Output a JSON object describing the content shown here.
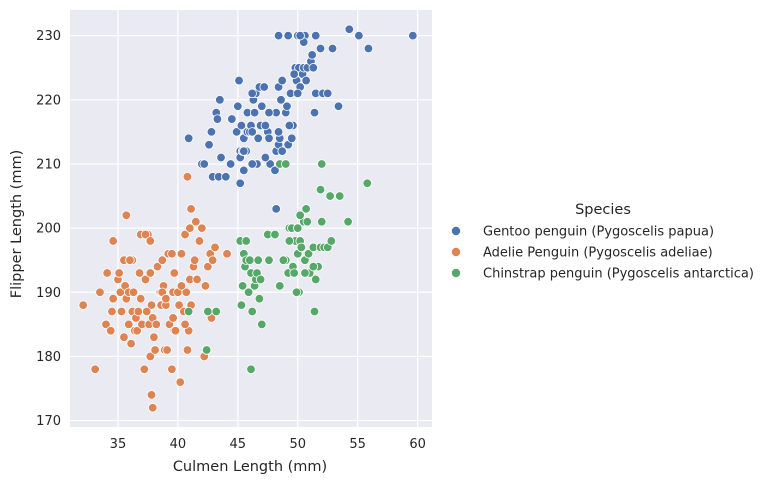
{
  "chart_data": {
    "type": "scatter",
    "xlabel": "Culmen Length (mm)",
    "ylabel": "Flipper Length (mm)",
    "xlim": [
      31,
      61.2
    ],
    "ylim": [
      169,
      234
    ],
    "x_ticks": [
      35,
      40,
      45,
      50,
      55,
      60
    ],
    "y_ticks": [
      170,
      180,
      190,
      200,
      210,
      220,
      230
    ],
    "grid": true,
    "legend": {
      "title": "Species",
      "placement": "right"
    },
    "series": [
      {
        "name": "Gentoo penguin (Pygoscelis papua)",
        "color": "#4c72b0",
        "points": [
          [
            40.9,
            214
          ],
          [
            42.0,
            210
          ],
          [
            42.2,
            210
          ],
          [
            42.6,
            213
          ],
          [
            42.8,
            215
          ],
          [
            43.2,
            218
          ],
          [
            43.3,
            217
          ],
          [
            43.5,
            220
          ],
          [
            42.9,
            208
          ],
          [
            43.4,
            208
          ],
          [
            43.6,
            211
          ],
          [
            44.0,
            208
          ],
          [
            44.4,
            210
          ],
          [
            44.5,
            217
          ],
          [
            44.9,
            215
          ],
          [
            45.2,
            212
          ],
          [
            45.0,
            219
          ],
          [
            45.1,
            223
          ],
          [
            45.2,
            211
          ],
          [
            45.3,
            216
          ],
          [
            45.2,
            207
          ],
          [
            45.4,
            212
          ],
          [
            45.5,
            209
          ],
          [
            45.5,
            214
          ],
          [
            45.7,
            212
          ],
          [
            45.8,
            215
          ],
          [
            46.0,
            215
          ],
          [
            46.1,
            216
          ],
          [
            46.2,
            215
          ],
          [
            46.3,
            220
          ],
          [
            45.8,
            218
          ],
          [
            46.4,
            218
          ],
          [
            46.5,
            221
          ],
          [
            46.2,
            221
          ],
          [
            46.8,
            222
          ],
          [
            47.0,
            219
          ],
          [
            47.2,
            222
          ],
          [
            47.5,
            215
          ],
          [
            46.6,
            210
          ],
          [
            46.9,
            216
          ],
          [
            47.3,
            216
          ],
          [
            47.6,
            214
          ],
          [
            47.7,
            210
          ],
          [
            48.1,
            209
          ],
          [
            48.2,
            212
          ],
          [
            48.4,
            213
          ],
          [
            48.5,
            214
          ],
          [
            48.7,
            212
          ],
          [
            48.2,
            218
          ],
          [
            48.4,
            215
          ],
          [
            48.6,
            220
          ],
          [
            48.4,
            222
          ],
          [
            48.7,
            223
          ],
          [
            49.0,
            218
          ],
          [
            49.1,
            219
          ],
          [
            49.2,
            213
          ],
          [
            49.4,
            221
          ],
          [
            49.5,
            214
          ],
          [
            49.6,
            216
          ],
          [
            49.8,
            225
          ],
          [
            49.9,
            223
          ],
          [
            50.1,
            225
          ],
          [
            50.2,
            222
          ],
          [
            50.4,
            224
          ],
          [
            50.5,
            225
          ],
          [
            50.6,
            230
          ],
          [
            50.8,
            225
          ],
          [
            51.1,
            226
          ],
          [
            51.3,
            225
          ],
          [
            51.5,
            221
          ],
          [
            49.3,
            216
          ],
          [
            50.0,
            221
          ],
          [
            49.7,
            224
          ],
          [
            50.5,
            229
          ],
          [
            50.7,
            223
          ],
          [
            51.4,
            218
          ],
          [
            51.2,
            227
          ],
          [
            52.1,
            221
          ],
          [
            52.5,
            221
          ],
          [
            53.4,
            219
          ],
          [
            48.4,
            230
          ],
          [
            49.2,
            230
          ],
          [
            50.0,
            230
          ],
          [
            50.2,
            230
          ],
          [
            51.5,
            230
          ],
          [
            51.9,
            228
          ],
          [
            52.9,
            228
          ],
          [
            54.3,
            231
          ],
          [
            55.1,
            230
          ],
          [
            55.9,
            228
          ],
          [
            59.6,
            230
          ],
          [
            48.2,
            203
          ],
          [
            48.5,
            210
          ],
          [
            47.3,
            211
          ],
          [
            46.7,
            214
          ],
          [
            45.5,
            212
          ],
          [
            47.6,
            218
          ],
          [
            46.2,
            210
          ]
        ]
      },
      {
        "name": "Adelie Penguin (Pygoscelis adeliae)",
        "color": "#dd8452",
        "points": [
          [
            32.1,
            188
          ],
          [
            33.1,
            178
          ],
          [
            33.5,
            190
          ],
          [
            34.0,
            185
          ],
          [
            34.1,
            193
          ],
          [
            34.4,
            184
          ],
          [
            34.5,
            187
          ],
          [
            34.6,
            189
          ],
          [
            34.6,
            198
          ],
          [
            35.0,
            192
          ],
          [
            35.1,
            193
          ],
          [
            35.2,
            190
          ],
          [
            35.3,
            187
          ],
          [
            35.5,
            195
          ],
          [
            35.6,
            191
          ],
          [
            35.7,
            189
          ],
          [
            35.7,
            202
          ],
          [
            35.9,
            185
          ],
          [
            35.9,
            190
          ],
          [
            36.0,
            195
          ],
          [
            36.2,
            187
          ],
          [
            36.2,
            195
          ],
          [
            36.3,
            190
          ],
          [
            36.4,
            184
          ],
          [
            36.5,
            186
          ],
          [
            36.6,
            184
          ],
          [
            36.7,
            187
          ],
          [
            36.8,
            193
          ],
          [
            36.9,
            189
          ],
          [
            37.0,
            185
          ],
          [
            37.2,
            178
          ],
          [
            37.3,
            192
          ],
          [
            37.5,
            199
          ],
          [
            37.6,
            185
          ],
          [
            37.7,
            193
          ],
          [
            37.8,
            188
          ],
          [
            37.9,
            186
          ],
          [
            37.7,
            180
          ],
          [
            37.8,
            174
          ],
          [
            37.9,
            172
          ],
          [
            38.1,
            181
          ],
          [
            38.2,
            185
          ],
          [
            38.3,
            194
          ],
          [
            38.5,
            190
          ],
          [
            38.6,
            190
          ],
          [
            38.6,
            188
          ],
          [
            38.7,
            195
          ],
          [
            38.8,
            191
          ],
          [
            38.9,
            181
          ],
          [
            39.0,
            188
          ],
          [
            39.1,
            181
          ],
          [
            39.2,
            196
          ],
          [
            39.3,
            185
          ],
          [
            39.5,
            178
          ],
          [
            39.6,
            186
          ],
          [
            39.6,
            190
          ],
          [
            39.7,
            184
          ],
          [
            39.8,
            184
          ],
          [
            40.0,
            190
          ],
          [
            40.1,
            188
          ],
          [
            40.2,
            176
          ],
          [
            40.3,
            196
          ],
          [
            40.5,
            187
          ],
          [
            40.6,
            199
          ],
          [
            40.7,
            190
          ],
          [
            40.8,
            181
          ],
          [
            40.9,
            184
          ],
          [
            41.0,
            192
          ],
          [
            41.1,
            188
          ],
          [
            41.3,
            194
          ],
          [
            41.4,
            195
          ],
          [
            41.5,
            201
          ],
          [
            41.6,
            192
          ],
          [
            41.8,
            198
          ],
          [
            42.0,
            200
          ],
          [
            42.2,
            180
          ],
          [
            42.3,
            191
          ],
          [
            42.5,
            194
          ],
          [
            42.7,
            196
          ],
          [
            42.8,
            186
          ],
          [
            43.1,
            197
          ],
          [
            40.8,
            208
          ],
          [
            41.1,
            203
          ],
          [
            41.0,
            200
          ],
          [
            36.0,
            195
          ],
          [
            36.9,
            199
          ],
          [
            37.3,
            199
          ],
          [
            37.7,
            198
          ],
          [
            38.7,
            190
          ],
          [
            39.0,
            189
          ],
          [
            39.5,
            196
          ],
          [
            40.6,
            185
          ],
          [
            35.5,
            183
          ],
          [
            37.4,
            187
          ],
          [
            36.1,
            182
          ],
          [
            38.0,
            183
          ],
          [
            39.7,
            193
          ],
          [
            40.3,
            191
          ],
          [
            44.1,
            196
          ],
          [
            42.9,
            195
          ]
        ]
      },
      {
        "name": "Chinstrap penguin (Pygoscelis antarctica)",
        "color": "#55a868",
        "points": [
          [
            40.9,
            187
          ],
          [
            42.4,
            181
          ],
          [
            42.5,
            187
          ],
          [
            43.2,
            187
          ],
          [
            45.2,
            198
          ],
          [
            45.4,
            191
          ],
          [
            45.5,
            196
          ],
          [
            45.6,
            194
          ],
          [
            45.7,
            195
          ],
          [
            45.9,
            190
          ],
          [
            46.0,
            195
          ],
          [
            46.1,
            193
          ],
          [
            46.2,
            187
          ],
          [
            46.4,
            191
          ],
          [
            46.5,
            192
          ],
          [
            46.6,
            193
          ],
          [
            46.7,
            195
          ],
          [
            46.8,
            189
          ],
          [
            46.9,
            192
          ],
          [
            47.0,
            185
          ],
          [
            45.3,
            188
          ],
          [
            47.5,
            199
          ],
          [
            47.6,
            195
          ],
          [
            48.1,
            199
          ],
          [
            48.5,
            191
          ],
          [
            49.0,
            195
          ],
          [
            49.2,
            193
          ],
          [
            49.3,
            200
          ],
          [
            49.5,
            200
          ],
          [
            49.6,
            194
          ],
          [
            49.7,
            193
          ],
          [
            49.8,
            198
          ],
          [
            50.0,
            196
          ],
          [
            50.1,
            190
          ],
          [
            50.2,
            198
          ],
          [
            50.3,
            197
          ],
          [
            50.5,
            201
          ],
          [
            50.6,
            195
          ],
          [
            50.7,
            203
          ],
          [
            50.8,
            201
          ],
          [
            50.9,
            196
          ],
          [
            51.0,
            193
          ],
          [
            51.3,
            197
          ],
          [
            51.4,
            187
          ],
          [
            51.5,
            192
          ],
          [
            51.7,
            194
          ],
          [
            51.9,
            197
          ],
          [
            52.0,
            201
          ],
          [
            52.2,
            197
          ],
          [
            52.5,
            197
          ],
          [
            52.7,
            205
          ],
          [
            53.5,
            205
          ],
          [
            54.2,
            201
          ],
          [
            55.8,
            207
          ],
          [
            51.3,
            194
          ],
          [
            52.8,
            198
          ],
          [
            51.9,
            206
          ],
          [
            52.0,
            210
          ],
          [
            50.0,
            200
          ],
          [
            48.5,
            210
          ],
          [
            46.1,
            178
          ],
          [
            48.8,
            195
          ],
          [
            50.6,
            193
          ],
          [
            49.9,
            190
          ],
          [
            49.3,
            198
          ],
          [
            49.0,
            210
          ],
          [
            45.7,
            198
          ],
          [
            50.2,
            202
          ]
        ]
      }
    ]
  }
}
